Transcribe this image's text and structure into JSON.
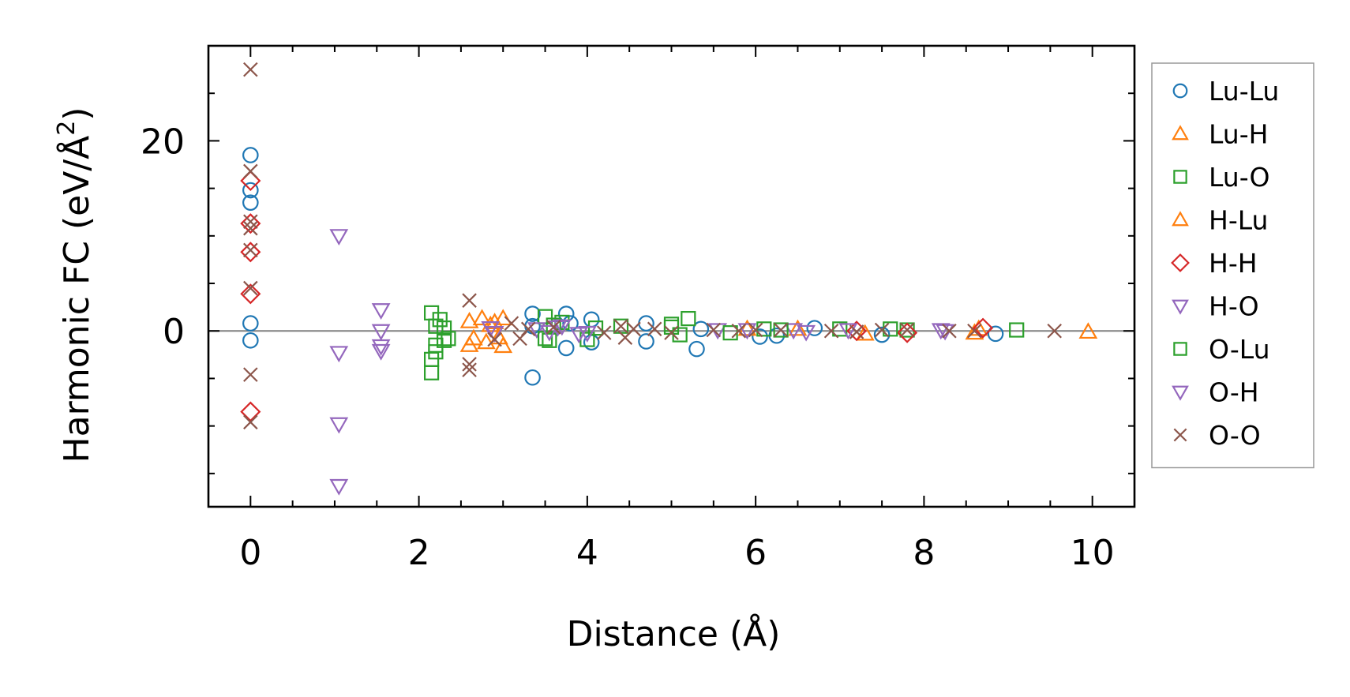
{
  "chart_data": {
    "type": "scatter",
    "title": "",
    "xlabel": "Distance (Å)",
    "ylabel_main": "Harmonic FC (eV/Å",
    "ylabel_sup": "2",
    "ylabel_close": ")",
    "xlim": [
      -0.5,
      10.5
    ],
    "ylim": [
      -18.5,
      30
    ],
    "xticks": [
      0,
      2,
      4,
      6,
      8,
      10
    ],
    "xtick_labels": [
      "0",
      "2",
      "4",
      "6",
      "8",
      "10"
    ],
    "yticks": [
      0,
      20
    ],
    "ytick_labels": [
      "0",
      "20"
    ],
    "zero_line": 0,
    "legend_position": "right, outside plot",
    "series": [
      {
        "name": "Lu-Lu",
        "marker": "circle",
        "color": "#1f77b4",
        "points": [
          [
            0,
            18.5
          ],
          [
            0,
            14.8
          ],
          [
            0,
            13.5
          ],
          [
            0,
            0.8
          ],
          [
            0,
            -1.0
          ],
          [
            3.35,
            1.8
          ],
          [
            3.35,
            -4.9
          ],
          [
            3.35,
            0.5
          ],
          [
            3.75,
            1.8
          ],
          [
            3.75,
            -1.8
          ],
          [
            3.8,
            0.8
          ],
          [
            4.05,
            1.2
          ],
          [
            4.05,
            -1.2
          ],
          [
            4.7,
            0.8
          ],
          [
            4.7,
            -1.1
          ],
          [
            5.3,
            -1.9
          ],
          [
            5.35,
            0.2
          ],
          [
            6.05,
            -0.6
          ],
          [
            6.25,
            -0.5
          ],
          [
            6.7,
            0.3
          ],
          [
            7.5,
            -0.4
          ],
          [
            8.85,
            -0.3
          ]
        ]
      },
      {
        "name": "Lu-H",
        "marker": "triangle-up",
        "color": "#ff7f0e",
        "points": [
          [
            2.6,
            1.0
          ],
          [
            2.6,
            -1.5
          ],
          [
            2.75,
            1.3
          ],
          [
            2.8,
            -1.2
          ],
          [
            2.9,
            0.9
          ],
          [
            3.0,
            1.3
          ],
          [
            3.0,
            -1.6
          ],
          [
            5.9,
            0.2
          ],
          [
            7.3,
            -0.3
          ],
          [
            8.6,
            -0.2
          ],
          [
            9.95,
            -0.1
          ]
        ]
      },
      {
        "name": "Lu-O",
        "marker": "square",
        "color": "#2ca02c",
        "points": [
          [
            2.15,
            1.9
          ],
          [
            2.15,
            -4.4
          ],
          [
            2.15,
            -3.0
          ],
          [
            2.2,
            0.5
          ],
          [
            2.2,
            -1.5
          ],
          [
            2.25,
            1.2
          ],
          [
            2.3,
            0.3
          ],
          [
            2.35,
            -0.8
          ],
          [
            3.5,
            1.5
          ],
          [
            3.55,
            -1.0
          ],
          [
            3.6,
            0.6
          ],
          [
            4.0,
            -0.9
          ],
          [
            4.4,
            0.5
          ],
          [
            5.0,
            0.4
          ],
          [
            5.1,
            -0.4
          ],
          [
            5.2,
            1.3
          ],
          [
            6.1,
            0.2
          ],
          [
            7.0,
            0.2
          ],
          [
            7.8,
            0.1
          ],
          [
            9.1,
            0.1
          ]
        ]
      },
      {
        "name": "H-Lu",
        "marker": "triangle-up",
        "color": "#ff7f0e",
        "points": [
          [
            2.65,
            -0.8
          ],
          [
            2.85,
            0.6
          ],
          [
            2.95,
            -0.7
          ],
          [
            6.5,
            0.2
          ],
          [
            8.65,
            0.2
          ]
        ]
      },
      {
        "name": "H-H",
        "marker": "diamond",
        "color": "#d62728",
        "points": [
          [
            0,
            15.8
          ],
          [
            0,
            11.3
          ],
          [
            0,
            8.3
          ],
          [
            0,
            3.9
          ],
          [
            0,
            -8.5
          ],
          [
            7.2,
            0.0
          ],
          [
            7.8,
            -0.2
          ],
          [
            8.7,
            0.3
          ]
        ]
      },
      {
        "name": "H-O",
        "marker": "triangle-down",
        "color": "#9467bd",
        "points": [
          [
            1.05,
            10.0
          ],
          [
            1.05,
            -2.3
          ],
          [
            1.05,
            -9.8
          ],
          [
            1.05,
            -16.3
          ],
          [
            1.55,
            2.2
          ],
          [
            1.55,
            0.0
          ],
          [
            1.55,
            -1.6
          ],
          [
            1.55,
            -2.1
          ],
          [
            2.85,
            0.3
          ],
          [
            3.4,
            0.2
          ],
          [
            3.65,
            0.4
          ],
          [
            3.9,
            -0.3
          ],
          [
            5.55,
            0.1
          ],
          [
            6.45,
            0.1
          ],
          [
            8.2,
            0.1
          ]
        ]
      },
      {
        "name": "O-Lu",
        "marker": "square",
        "color": "#2ca02c",
        "points": [
          [
            2.2,
            -2.2
          ],
          [
            2.3,
            -1.0
          ],
          [
            3.5,
            -0.8
          ],
          [
            3.7,
            0.9
          ],
          [
            4.1,
            0.3
          ],
          [
            5.0,
            0.7
          ],
          [
            5.7,
            -0.2
          ],
          [
            6.3,
            0.1
          ],
          [
            7.6,
            0.2
          ]
        ]
      },
      {
        "name": "O-H",
        "marker": "triangle-down",
        "color": "#9467bd",
        "points": [
          [
            2.9,
            -0.2
          ],
          [
            3.55,
            -0.1
          ],
          [
            3.7,
            0.5
          ],
          [
            4.0,
            -0.2
          ],
          [
            5.9,
            0.1
          ],
          [
            6.6,
            -0.1
          ],
          [
            7.1,
            0.1
          ],
          [
            8.25,
            0.0
          ]
        ]
      },
      {
        "name": "O-O",
        "marker": "x",
        "color": "#8c564b",
        "points": [
          [
            0,
            27.5
          ],
          [
            0,
            16.8
          ],
          [
            0,
            11.5
          ],
          [
            0,
            10.8
          ],
          [
            0,
            8.5
          ],
          [
            0,
            4.5
          ],
          [
            0,
            -4.6
          ],
          [
            0,
            -9.6
          ],
          [
            2.6,
            3.2
          ],
          [
            2.6,
            -3.5
          ],
          [
            2.6,
            -4.1
          ],
          [
            2.9,
            -0.9
          ],
          [
            3.1,
            0.8
          ],
          [
            3.2,
            -0.8
          ],
          [
            3.3,
            0.2
          ],
          [
            3.6,
            0.4
          ],
          [
            4.2,
            -0.2
          ],
          [
            4.4,
            0.5
          ],
          [
            4.45,
            -0.7
          ],
          [
            4.55,
            0.2
          ],
          [
            4.8,
            0.2
          ],
          [
            5.0,
            -0.2
          ],
          [
            5.5,
            0.1
          ],
          [
            5.8,
            0.0
          ],
          [
            6.0,
            0.1
          ],
          [
            6.3,
            0.1
          ],
          [
            6.9,
            0.0
          ],
          [
            7.2,
            -0.1
          ],
          [
            7.5,
            0.1
          ],
          [
            7.8,
            0.1
          ],
          [
            8.3,
            0.0
          ],
          [
            8.6,
            0.0
          ],
          [
            9.55,
            0.0
          ]
        ]
      }
    ]
  }
}
